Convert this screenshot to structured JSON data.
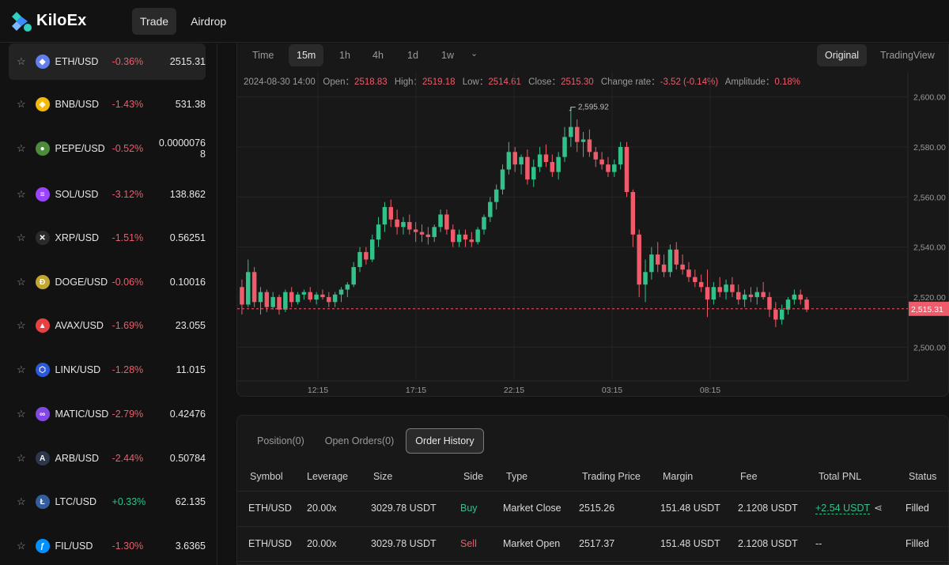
{
  "app": {
    "name": "KiloEx"
  },
  "nav": {
    "trade": "Trade",
    "airdrop": "Airdrop"
  },
  "markets": [
    {
      "symbol": "ETH/USD",
      "change": "-0.36%",
      "price": "2515.31",
      "dir": "neg",
      "icon": "ethereum-icon",
      "color": "#627eea",
      "glyph": "◆"
    },
    {
      "symbol": "BNB/USD",
      "change": "-1.43%",
      "price": "531.38",
      "dir": "neg",
      "icon": "bnb-icon",
      "color": "#f0b90b",
      "glyph": "◈"
    },
    {
      "symbol": "PEPE/USD",
      "change": "-0.52%",
      "price": "0.0000076\n8",
      "dir": "neg",
      "icon": "pepe-icon",
      "color": "#4c8b3a",
      "glyph": "●"
    },
    {
      "symbol": "SOL/USD",
      "change": "-3.12%",
      "price": "138.862",
      "dir": "neg",
      "icon": "solana-icon",
      "color": "#9945ff",
      "glyph": "≡"
    },
    {
      "symbol": "XRP/USD",
      "change": "-1.51%",
      "price": "0.56251",
      "dir": "neg",
      "icon": "xrp-icon",
      "color": "#2b2b2b",
      "glyph": "✕"
    },
    {
      "symbol": "DOGE/USD",
      "change": "-0.06%",
      "price": "0.10016",
      "dir": "neg",
      "icon": "dogecoin-icon",
      "color": "#c2a633",
      "glyph": "Ð"
    },
    {
      "symbol": "AVAX/USD",
      "change": "-1.69%",
      "price": "23.055",
      "dir": "neg",
      "icon": "avalanche-icon",
      "color": "#e84142",
      "glyph": "▲"
    },
    {
      "symbol": "LINK/USD",
      "change": "-1.28%",
      "price": "11.015",
      "dir": "neg",
      "icon": "chainlink-icon",
      "color": "#2a5ada",
      "glyph": "⬡"
    },
    {
      "symbol": "MATIC/USD",
      "change": "-2.79%",
      "price": "0.42476",
      "dir": "neg",
      "icon": "polygon-icon",
      "color": "#8247e5",
      "glyph": "∞"
    },
    {
      "symbol": "ARB/USD",
      "change": "-2.44%",
      "price": "0.50784",
      "dir": "neg",
      "icon": "arbitrum-icon",
      "color": "#2d374b",
      "glyph": "A"
    },
    {
      "symbol": "LTC/USD",
      "change": "+0.33%",
      "price": "62.135",
      "dir": "pos",
      "icon": "litecoin-icon",
      "color": "#345d9d",
      "glyph": "Ł"
    },
    {
      "symbol": "FIL/USD",
      "change": "-1.30%",
      "price": "3.6365",
      "dir": "neg",
      "icon": "filecoin-icon",
      "color": "#0090ff",
      "glyph": "ƒ"
    }
  ],
  "timeframes": [
    "Time",
    "15m",
    "1h",
    "4h",
    "1d",
    "1w"
  ],
  "active_timeframe": "15m",
  "views": {
    "original": "Original",
    "tradingview": "TradingView"
  },
  "ohlc": {
    "datetime": "2024-08-30 14:00",
    "open_label": "Open：",
    "open": "2518.83",
    "high_label": "High：",
    "high": "2519.18",
    "low_label": "Low：",
    "low": "2514.61",
    "close_label": "Close：",
    "close": "2515.30",
    "change_label": "Change rate：",
    "change": "-3.52 (-0.14%)",
    "amp_label": "Amplitude：",
    "amplitude": "0.18%"
  },
  "chart_data": {
    "type": "candlestick",
    "y_ticks": [
      "2,600.00",
      "2,580.00",
      "2,560.00",
      "2,540.00",
      "2,520.00",
      "2,500.00"
    ],
    "y_tick_values": [
      2600,
      2580,
      2560,
      2540,
      2520,
      2500
    ],
    "x_ticks": [
      "12:15",
      "17:15",
      "22:15",
      "03:15",
      "08:15"
    ],
    "ylim": [
      2486.5,
      2610
    ],
    "current_price": 2515.31,
    "current_price_label": "2,515.31",
    "high_marker": 2595.92,
    "high_marker_label": "2,595.92",
    "grid": true,
    "candles": [
      [
        2524,
        2527,
        2513,
        2517
      ],
      [
        2517,
        2535,
        2516,
        2530
      ],
      [
        2530,
        2532,
        2516,
        2518
      ],
      [
        2518,
        2524,
        2513,
        2522
      ],
      [
        2522,
        2523,
        2514,
        2516
      ],
      [
        2516,
        2522,
        2515,
        2520
      ],
      [
        2520,
        2521,
        2513,
        2515
      ],
      [
        2515,
        2523,
        2514,
        2522
      ],
      [
        2522,
        2524,
        2516,
        2518
      ],
      [
        2518,
        2522,
        2517,
        2521
      ],
      [
        2521,
        2523,
        2519,
        2522
      ],
      [
        2522,
        2524,
        2518,
        2519
      ],
      [
        2519,
        2522,
        2517,
        2521
      ],
      [
        2521,
        2523,
        2519,
        2520
      ],
      [
        2520,
        2522,
        2516,
        2518
      ],
      [
        2518,
        2522,
        2516,
        2521
      ],
      [
        2521,
        2524,
        2518,
        2523
      ],
      [
        2523,
        2526,
        2520,
        2525
      ],
      [
        2525,
        2534,
        2524,
        2532
      ],
      [
        2532,
        2540,
        2530,
        2538
      ],
      [
        2538,
        2540,
        2533,
        2535
      ],
      [
        2535,
        2545,
        2534,
        2543
      ],
      [
        2543,
        2552,
        2540,
        2549
      ],
      [
        2549,
        2558,
        2546,
        2556
      ],
      [
        2556,
        2559,
        2548,
        2551
      ],
      [
        2551,
        2555,
        2545,
        2548
      ],
      [
        2548,
        2552,
        2545,
        2550
      ],
      [
        2550,
        2553,
        2545,
        2547
      ],
      [
        2547,
        2550,
        2542,
        2546
      ],
      [
        2546,
        2549,
        2542,
        2545
      ],
      [
        2545,
        2548,
        2541,
        2544
      ],
      [
        2544,
        2549,
        2542,
        2548
      ],
      [
        2548,
        2555,
        2546,
        2553
      ],
      [
        2553,
        2555,
        2545,
        2547
      ],
      [
        2547,
        2549,
        2540,
        2542
      ],
      [
        2542,
        2547,
        2540,
        2545
      ],
      [
        2545,
        2547,
        2540,
        2543
      ],
      [
        2543,
        2546,
        2540,
        2542
      ],
      [
        2542,
        2548,
        2541,
        2547
      ],
      [
        2547,
        2553,
        2545,
        2552
      ],
      [
        2552,
        2560,
        2550,
        2558
      ],
      [
        2558,
        2565,
        2555,
        2563
      ],
      [
        2563,
        2573,
        2561,
        2571
      ],
      [
        2571,
        2582,
        2569,
        2578
      ],
      [
        2578,
        2580,
        2570,
        2573
      ],
      [
        2573,
        2577,
        2569,
        2576
      ],
      [
        2576,
        2579,
        2565,
        2567
      ],
      [
        2567,
        2575,
        2564,
        2572
      ],
      [
        2572,
        2580,
        2570,
        2577
      ],
      [
        2577,
        2581,
        2572,
        2574
      ],
      [
        2574,
        2577,
        2568,
        2570
      ],
      [
        2570,
        2578,
        2567,
        2576
      ],
      [
        2576,
        2588,
        2574,
        2584
      ],
      [
        2584,
        2596,
        2580,
        2588
      ],
      [
        2588,
        2591,
        2578,
        2582
      ],
      [
        2582,
        2586,
        2576,
        2583
      ],
      [
        2583,
        2587,
        2576,
        2578
      ],
      [
        2578,
        2580,
        2572,
        2575
      ],
      [
        2575,
        2578,
        2571,
        2573
      ],
      [
        2573,
        2576,
        2568,
        2570
      ],
      [
        2570,
        2575,
        2568,
        2573
      ],
      [
        2573,
        2582,
        2571,
        2580
      ],
      [
        2580,
        2582,
        2560,
        2562
      ],
      [
        2562,
        2563,
        2540,
        2545
      ],
      [
        2545,
        2547,
        2520,
        2525
      ],
      [
        2525,
        2535,
        2518,
        2530
      ],
      [
        2530,
        2540,
        2527,
        2537
      ],
      [
        2537,
        2542,
        2530,
        2533
      ],
      [
        2533,
        2537,
        2528,
        2530
      ],
      [
        2530,
        2541,
        2528,
        2539
      ],
      [
        2539,
        2542,
        2531,
        2533
      ],
      [
        2533,
        2537,
        2529,
        2531
      ],
      [
        2531,
        2534,
        2526,
        2528
      ],
      [
        2528,
        2531,
        2524,
        2526
      ],
      [
        2526,
        2529,
        2522,
        2524
      ],
      [
        2524,
        2531,
        2512,
        2519
      ],
      [
        2519,
        2526,
        2517,
        2524
      ],
      [
        2524,
        2528,
        2520,
        2522
      ],
      [
        2522,
        2527,
        2519,
        2525
      ],
      [
        2525,
        2528,
        2520,
        2522
      ],
      [
        2522,
        2525,
        2517,
        2519
      ],
      [
        2519,
        2523,
        2516,
        2521
      ],
      [
        2521,
        2524,
        2518,
        2520
      ],
      [
        2520,
        2524,
        2517,
        2522
      ],
      [
        2522,
        2526,
        2519,
        2520
      ],
      [
        2520,
        2522,
        2512,
        2515
      ],
      [
        2515,
        2518,
        2508,
        2511
      ],
      [
        2511,
        2517,
        2509,
        2515
      ],
      [
        2515,
        2520,
        2513,
        2519
      ],
      [
        2519,
        2523,
        2517,
        2521
      ],
      [
        2521,
        2523,
        2517,
        2519
      ],
      [
        2519,
        2520,
        2514,
        2515
      ]
    ]
  },
  "orders": {
    "tabs": [
      "Position(0)",
      "Open Orders(0)",
      "Order History"
    ],
    "active_tab": "Order History",
    "columns": [
      "Symbol",
      "Leverage",
      "Size",
      "Side",
      "Type",
      "Trading Price",
      "Margin",
      "Fee",
      "Total PNL",
      "Status"
    ],
    "rows": [
      {
        "symbol": "ETH/USD",
        "leverage": "20.00x",
        "size": "3029.78 USDT",
        "side": "Buy",
        "type": "Market Close",
        "price": "2515.26",
        "margin": "151.48 USDT",
        "fee": "2.1208 USDT",
        "pnl": "+2.54 USDT",
        "status": "Filled"
      },
      {
        "symbol": "ETH/USD",
        "leverage": "20.00x",
        "size": "3029.78 USDT",
        "side": "Sell",
        "type": "Market Open",
        "price": "2517.37",
        "margin": "151.48 USDT",
        "fee": "2.1208 USDT",
        "pnl": "--",
        "status": "Filled"
      }
    ]
  }
}
